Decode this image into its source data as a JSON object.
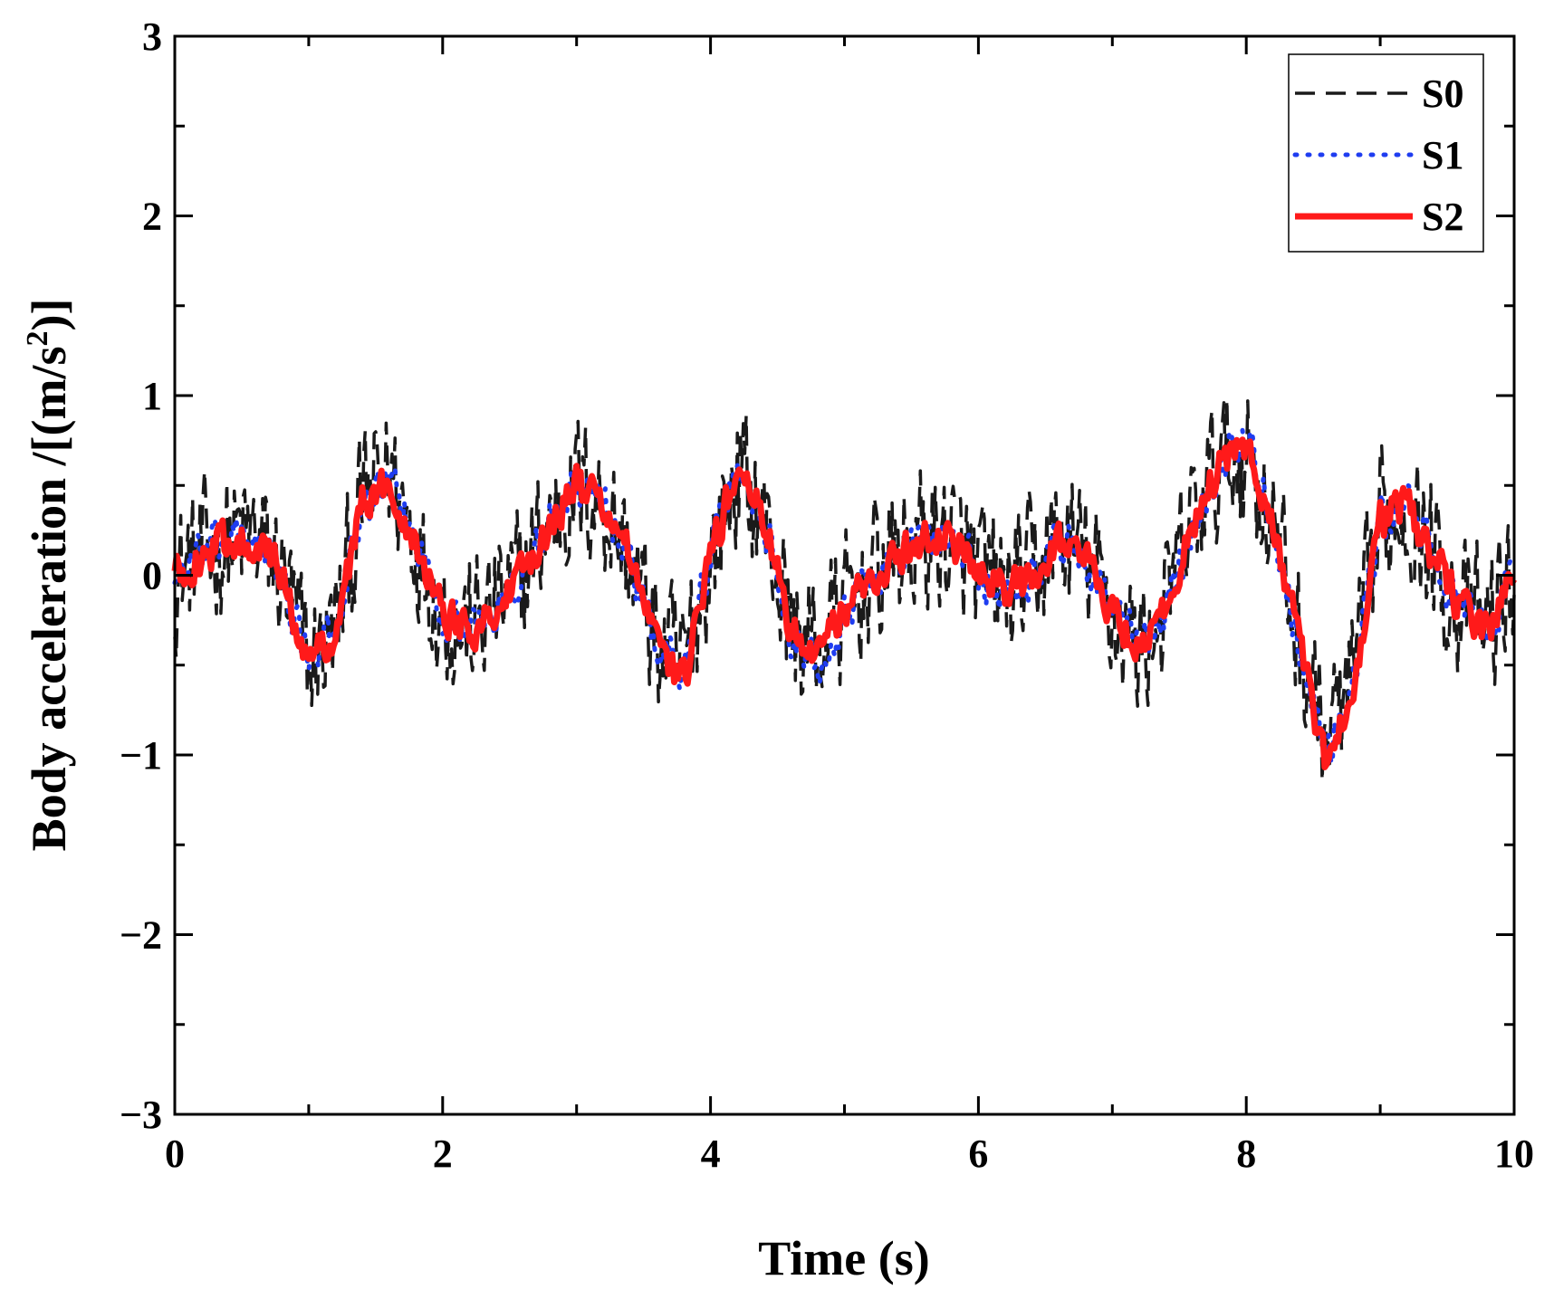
{
  "chart_data": {
    "type": "line",
    "title": "",
    "xlabel": "Time (s)",
    "ylabel": "Body acceleration /[(m/s",
    "ylabel_superscript": "2",
    "ylabel_suffix": ")]",
    "xlim": [
      0,
      10
    ],
    "ylim": [
      -3,
      3
    ],
    "x_ticks": [
      0,
      2,
      4,
      6,
      8,
      10
    ],
    "x_tick_labels": [
      "0",
      "2",
      "4",
      "6",
      "8",
      "10"
    ],
    "y_ticks": [
      -3,
      -2,
      -1,
      0,
      1,
      2,
      3
    ],
    "y_tick_labels": [
      "−3",
      "−2",
      "−1",
      "0",
      "1",
      "2",
      "3"
    ],
    "grid": false,
    "legend_position": "top-right",
    "series": [
      {
        "name": "S0",
        "color": "#1a1a1a",
        "style": "dashed",
        "x": [
          0.0,
          0.2,
          0.4,
          0.6,
          0.8,
          1.0,
          1.2,
          1.4,
          1.6,
          1.8,
          2.0,
          2.2,
          2.4,
          2.6,
          2.8,
          3.0,
          3.2,
          3.4,
          3.6,
          3.8,
          4.0,
          4.2,
          4.4,
          4.6,
          4.8,
          5.0,
          5.2,
          5.4,
          5.6,
          5.8,
          6.0,
          6.2,
          6.4,
          6.6,
          6.8,
          7.0,
          7.2,
          7.4,
          7.6,
          7.8,
          8.0,
          8.2,
          8.4,
          8.6,
          8.8,
          9.0,
          9.2,
          9.4,
          9.6,
          9.8,
          10.0
        ],
        "values": [
          0.0,
          0.1,
          0.2,
          0.2,
          0.0,
          -0.5,
          -0.3,
          0.4,
          0.6,
          0.2,
          -0.2,
          -0.3,
          -0.2,
          0.0,
          0.3,
          0.5,
          0.4,
          0.1,
          -0.4,
          -0.5,
          0.1,
          0.6,
          0.3,
          -0.3,
          -0.4,
          -0.2,
          0.0,
          0.1,
          0.2,
          0.2,
          0.0,
          -0.1,
          0.0,
          0.2,
          0.1,
          -0.2,
          -0.4,
          -0.2,
          0.3,
          0.6,
          0.7,
          0.3,
          -0.4,
          -0.9,
          -0.6,
          0.3,
          0.4,
          0.1,
          -0.2,
          -0.3,
          0.0
        ],
        "amplitude": 0.55
      },
      {
        "name": "S1",
        "color": "#1f3df0",
        "style": "dotted",
        "x": [
          0.0,
          0.2,
          0.4,
          0.6,
          0.8,
          1.0,
          1.2,
          1.4,
          1.6,
          1.8,
          2.0,
          2.2,
          2.4,
          2.6,
          2.8,
          3.0,
          3.2,
          3.4,
          3.6,
          3.8,
          4.0,
          4.2,
          4.4,
          4.6,
          4.8,
          5.0,
          5.2,
          5.4,
          5.6,
          5.8,
          6.0,
          6.2,
          6.4,
          6.6,
          6.8,
          7.0,
          7.2,
          7.4,
          7.6,
          7.8,
          8.0,
          8.2,
          8.4,
          8.6,
          8.8,
          9.0,
          9.2,
          9.4,
          9.6,
          9.8,
          10.0
        ],
        "values": [
          0.0,
          0.1,
          0.2,
          0.2,
          0.0,
          -0.5,
          -0.3,
          0.4,
          0.5,
          0.2,
          -0.2,
          -0.3,
          -0.2,
          0.0,
          0.3,
          0.5,
          0.4,
          0.1,
          -0.4,
          -0.5,
          0.1,
          0.6,
          0.3,
          -0.3,
          -0.5,
          -0.2,
          0.0,
          0.1,
          0.2,
          0.2,
          0.0,
          -0.1,
          0.0,
          0.2,
          0.1,
          -0.2,
          -0.4,
          -0.2,
          0.3,
          0.6,
          0.8,
          0.3,
          -0.4,
          -1.0,
          -0.6,
          0.3,
          0.4,
          0.1,
          -0.2,
          -0.3,
          0.0
        ],
        "amplitude": 0.18
      },
      {
        "name": "S2",
        "color": "#ff1a1a",
        "style": "solid",
        "x": [
          0.0,
          0.2,
          0.4,
          0.6,
          0.8,
          1.0,
          1.2,
          1.4,
          1.6,
          1.8,
          2.0,
          2.2,
          2.4,
          2.6,
          2.8,
          3.0,
          3.2,
          3.4,
          3.6,
          3.8,
          4.0,
          4.2,
          4.4,
          4.6,
          4.8,
          5.0,
          5.2,
          5.4,
          5.6,
          5.8,
          6.0,
          6.2,
          6.4,
          6.6,
          6.8,
          7.0,
          7.2,
          7.4,
          7.6,
          7.8,
          8.0,
          8.2,
          8.4,
          8.6,
          8.8,
          9.0,
          9.2,
          9.4,
          9.6,
          9.8,
          10.0
        ],
        "values": [
          0.0,
          0.1,
          0.2,
          0.2,
          0.0,
          -0.5,
          -0.3,
          0.4,
          0.5,
          0.2,
          -0.2,
          -0.3,
          -0.2,
          0.0,
          0.3,
          0.5,
          0.4,
          0.1,
          -0.4,
          -0.6,
          0.1,
          0.6,
          0.3,
          -0.3,
          -0.4,
          -0.2,
          0.0,
          0.1,
          0.2,
          0.2,
          0.0,
          -0.1,
          0.0,
          0.2,
          0.1,
          -0.2,
          -0.4,
          -0.2,
          0.3,
          0.6,
          0.7,
          0.3,
          -0.4,
          -1.1,
          -0.6,
          0.3,
          0.4,
          0.1,
          -0.2,
          -0.3,
          0.0
        ],
        "amplitude": 0.15
      }
    ]
  }
}
